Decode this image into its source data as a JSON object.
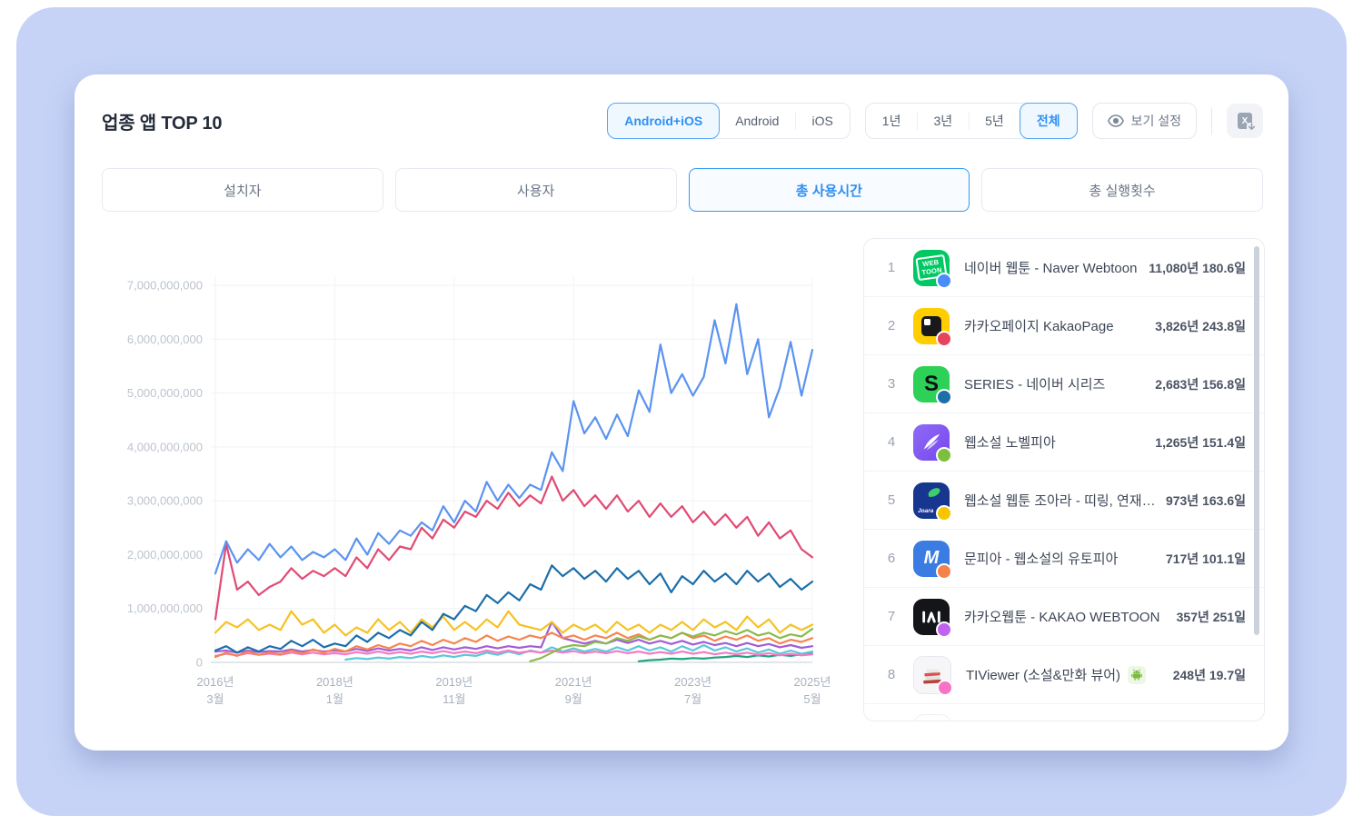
{
  "page": {
    "title": "업종 앱 TOP 10"
  },
  "header": {
    "platform_tabs": [
      {
        "label": "Android+iOS",
        "active": true
      },
      {
        "label": "Android",
        "active": false
      },
      {
        "label": "iOS",
        "active": false
      }
    ],
    "period_tabs": [
      {
        "label": "1년",
        "active": false
      },
      {
        "label": "3년",
        "active": false
      },
      {
        "label": "5년",
        "active": false
      },
      {
        "label": "전체",
        "active": true
      }
    ],
    "view_settings_label": "보기 설정",
    "accent_color": "#2e90f5"
  },
  "metric_tabs": [
    {
      "label": "설치자",
      "active": false
    },
    {
      "label": "사용자",
      "active": false
    },
    {
      "label": "총 사용시간",
      "active": true
    },
    {
      "label": "총 실행횟수",
      "active": false
    }
  ],
  "chart_data": {
    "type": "line",
    "unit_note": "total usage time, y values in billions (unit shown on axis as raw numbers)",
    "ylim": [
      0,
      7000000000
    ],
    "grid": true,
    "y_ticks": [
      "7,000,000,000",
      "6,000,000,000",
      "5,000,000,000",
      "4,000,000,000",
      "3,000,000,000",
      "2,000,000,000",
      "1,000,000,000",
      "0"
    ],
    "x_ticks": [
      {
        "line1": "2016년",
        "line2": "3월"
      },
      {
        "line1": "2018년",
        "line2": "1월"
      },
      {
        "line1": "2019년",
        "line2": "11월"
      },
      {
        "line1": "2021년",
        "line2": "9월"
      },
      {
        "line1": "2023년",
        "line2": "7월"
      },
      {
        "line1": "2025년",
        "line2": "5월"
      }
    ],
    "x_start": "2016-03",
    "x_step_months": 2,
    "series": [
      {
        "name": "네이버 웹툰 - Naver Webtoon",
        "color": "#5b93f0",
        "values": [
          1.65,
          2.25,
          1.85,
          2.1,
          1.9,
          2.2,
          1.95,
          2.15,
          1.9,
          2.05,
          1.95,
          2.1,
          1.9,
          2.3,
          2.0,
          2.4,
          2.2,
          2.45,
          2.35,
          2.6,
          2.45,
          2.9,
          2.6,
          3.0,
          2.8,
          3.35,
          3.0,
          3.3,
          3.05,
          3.3,
          3.2,
          3.9,
          3.55,
          4.85,
          4.25,
          4.55,
          4.15,
          4.6,
          4.2,
          5.05,
          4.65,
          5.9,
          5.0,
          5.35,
          4.95,
          5.3,
          6.35,
          5.55,
          6.65,
          5.35,
          6.0,
          4.55,
          5.1,
          5.95,
          4.95,
          5.8
        ]
      },
      {
        "name": "카카오페이지 KakaoPage",
        "color": "#e14a73",
        "values": [
          0.8,
          2.2,
          1.35,
          1.5,
          1.25,
          1.4,
          1.5,
          1.75,
          1.55,
          1.7,
          1.6,
          1.75,
          1.6,
          1.95,
          1.75,
          2.1,
          1.9,
          2.15,
          2.1,
          2.5,
          2.3,
          2.65,
          2.5,
          2.8,
          2.7,
          3.0,
          2.85,
          3.15,
          2.9,
          3.1,
          2.95,
          3.45,
          3.0,
          3.2,
          2.9,
          3.1,
          2.85,
          3.1,
          2.8,
          3.0,
          2.7,
          2.95,
          2.7,
          2.9,
          2.6,
          2.8,
          2.55,
          2.75,
          2.5,
          2.7,
          2.35,
          2.6,
          2.3,
          2.45,
          2.1,
          1.95
        ]
      },
      {
        "name": "SERIES - 네이버 시리즈",
        "color": "#1c6ea9",
        "values": [
          0.22,
          0.3,
          0.18,
          0.28,
          0.2,
          0.3,
          0.25,
          0.4,
          0.3,
          0.42,
          0.28,
          0.35,
          0.3,
          0.5,
          0.38,
          0.55,
          0.45,
          0.6,
          0.5,
          0.75,
          0.6,
          0.9,
          0.8,
          1.05,
          0.95,
          1.25,
          1.1,
          1.3,
          1.15,
          1.45,
          1.35,
          1.8,
          1.6,
          1.75,
          1.55,
          1.7,
          1.5,
          1.75,
          1.55,
          1.7,
          1.45,
          1.65,
          1.3,
          1.6,
          1.45,
          1.7,
          1.5,
          1.65,
          1.45,
          1.7,
          1.5,
          1.65,
          1.4,
          1.55,
          1.35,
          1.5
        ]
      },
      {
        "name": "웹소설 노벨피아",
        "color": "#8bba4c",
        "values": [
          null,
          null,
          null,
          null,
          null,
          null,
          null,
          null,
          null,
          null,
          null,
          null,
          null,
          null,
          null,
          null,
          null,
          null,
          null,
          null,
          null,
          null,
          null,
          null,
          null,
          null,
          null,
          null,
          null,
          0.02,
          0.08,
          0.18,
          0.28,
          0.32,
          0.3,
          0.38,
          0.35,
          0.45,
          0.4,
          0.48,
          0.42,
          0.5,
          0.45,
          0.55,
          0.48,
          0.55,
          0.5,
          0.58,
          0.52,
          0.6,
          0.5,
          0.55,
          0.45,
          0.52,
          0.48,
          0.62
        ]
      },
      {
        "name": "웹소설 웹툰 조아라 - 띠링, 연재가 ...",
        "color": "#f6c222",
        "values": [
          0.55,
          0.75,
          0.65,
          0.8,
          0.6,
          0.7,
          0.6,
          0.95,
          0.7,
          0.8,
          0.55,
          0.7,
          0.5,
          0.65,
          0.55,
          0.8,
          0.6,
          0.75,
          0.55,
          0.8,
          0.65,
          0.85,
          0.6,
          0.75,
          0.6,
          0.8,
          0.65,
          0.95,
          0.7,
          0.65,
          0.6,
          0.75,
          0.55,
          0.7,
          0.6,
          0.7,
          0.55,
          0.75,
          0.6,
          0.7,
          0.55,
          0.7,
          0.6,
          0.75,
          0.6,
          0.8,
          0.65,
          0.75,
          0.6,
          0.85,
          0.65,
          0.8,
          0.55,
          0.7,
          0.6,
          0.7
        ]
      },
      {
        "name": "문피아 - 웹소설의 유토피아",
        "color": "#f5854f",
        "values": [
          0.1,
          0.18,
          0.12,
          0.2,
          0.14,
          0.18,
          0.15,
          0.22,
          0.16,
          0.24,
          0.18,
          0.25,
          0.2,
          0.3,
          0.24,
          0.32,
          0.26,
          0.35,
          0.3,
          0.4,
          0.32,
          0.42,
          0.35,
          0.45,
          0.38,
          0.5,
          0.4,
          0.48,
          0.42,
          0.5,
          0.45,
          0.55,
          0.45,
          0.5,
          0.42,
          0.5,
          0.45,
          0.55,
          0.45,
          0.52,
          0.42,
          0.5,
          0.45,
          0.55,
          0.45,
          0.5,
          0.4,
          0.48,
          0.42,
          0.5,
          0.4,
          0.45,
          0.35,
          0.42,
          0.38,
          0.45
        ]
      },
      {
        "name": "카카오웹툰 - KAKAO WEBTOON",
        "color": "#a25cd6",
        "values": [
          0.2,
          0.22,
          0.18,
          0.22,
          0.19,
          0.21,
          0.2,
          0.24,
          0.2,
          0.23,
          0.2,
          0.22,
          0.2,
          0.25,
          0.21,
          0.26,
          0.22,
          0.25,
          0.22,
          0.28,
          0.23,
          0.28,
          0.24,
          0.28,
          0.25,
          0.3,
          0.26,
          0.3,
          0.27,
          0.3,
          0.28,
          0.75,
          0.45,
          0.4,
          0.35,
          0.4,
          0.35,
          0.42,
          0.36,
          0.42,
          0.35,
          0.4,
          0.34,
          0.4,
          0.33,
          0.38,
          0.32,
          0.36,
          0.3,
          0.36,
          0.3,
          0.34,
          0.28,
          0.32,
          0.27,
          0.3
        ]
      },
      {
        "name": "TIViewer (소설&만화 뷰어)",
        "color": "#f47bc3",
        "values": [
          0.12,
          0.16,
          0.13,
          0.17,
          0.14,
          0.16,
          0.14,
          0.18,
          0.15,
          0.18,
          0.15,
          0.17,
          0.15,
          0.19,
          0.16,
          0.2,
          0.16,
          0.19,
          0.16,
          0.2,
          0.17,
          0.21,
          0.17,
          0.2,
          0.17,
          0.22,
          0.18,
          0.22,
          0.18,
          0.21,
          0.18,
          0.22,
          0.18,
          0.21,
          0.17,
          0.2,
          0.17,
          0.21,
          0.17,
          0.2,
          0.16,
          0.19,
          0.16,
          0.2,
          0.16,
          0.19,
          0.15,
          0.18,
          0.15,
          0.18,
          0.14,
          0.17,
          0.13,
          0.16,
          0.13,
          0.15
        ]
      },
      {
        "name": "",
        "color": "#58c8d8",
        "values": [
          null,
          null,
          null,
          null,
          null,
          null,
          null,
          null,
          null,
          null,
          null,
          null,
          0.05,
          0.08,
          0.06,
          0.09,
          0.07,
          0.1,
          0.08,
          0.12,
          0.09,
          0.13,
          0.1,
          0.14,
          0.12,
          0.18,
          0.14,
          0.2,
          0.15,
          0.22,
          0.18,
          0.28,
          0.2,
          0.26,
          0.2,
          0.25,
          0.2,
          0.28,
          0.22,
          0.3,
          0.22,
          0.28,
          0.2,
          0.3,
          0.22,
          0.32,
          0.22,
          0.28,
          0.2,
          0.26,
          0.18,
          0.24,
          0.16,
          0.22,
          0.16,
          0.2
        ]
      },
      {
        "name": "",
        "color": "#1fa380",
        "values": [
          null,
          null,
          null,
          null,
          null,
          null,
          null,
          null,
          null,
          null,
          null,
          null,
          null,
          null,
          null,
          null,
          null,
          null,
          null,
          null,
          null,
          null,
          null,
          null,
          null,
          null,
          null,
          null,
          null,
          null,
          null,
          null,
          null,
          null,
          null,
          null,
          null,
          null,
          null,
          0.02,
          0.04,
          0.05,
          0.07,
          0.06,
          0.08,
          0.07,
          0.09,
          0.1,
          0.12,
          0.1,
          0.13,
          0.11,
          0.14,
          0.12,
          0.15,
          0.16
        ]
      }
    ]
  },
  "ranking": {
    "rows": [
      {
        "rank": "1",
        "name": "네이버 웹툰 - Naver Webtoon",
        "value": "11,080년 180.6일",
        "icon": "naver-webtoon-icon",
        "dot_color": "#4b8df8",
        "android_badge": false
      },
      {
        "rank": "2",
        "name": "카카오페이지 KakaoPage",
        "value": "3,826년 243.8일",
        "icon": "kakaopage-icon",
        "dot_color": "#e8435c",
        "android_badge": false
      },
      {
        "rank": "3",
        "name": "SERIES - 네이버 시리즈",
        "value": "2,683년 156.8일",
        "icon": "series-icon",
        "dot_color": "#1d6fa8",
        "android_badge": false
      },
      {
        "rank": "4",
        "name": "웹소설 노벨피아",
        "value": "1,265년 151.4일",
        "icon": "novelpia-icon",
        "dot_color": "#7cbf3f",
        "android_badge": false
      },
      {
        "rank": "5",
        "name": "웹소설 웹툰 조아라 - 띠링, 연재가 ...",
        "value": "973년 163.6일",
        "icon": "joara-icon",
        "dot_color": "#f7c600",
        "android_badge": false
      },
      {
        "rank": "6",
        "name": "문피아 - 웹소설의 유토피아",
        "value": "717년 101.1일",
        "icon": "munpia-icon",
        "dot_color": "#f5824a",
        "android_badge": false
      },
      {
        "rank": "7",
        "name": "카카오웹툰 - KAKAO WEBTOON",
        "value": "357년 251일",
        "icon": "kakao-webtoon-icon",
        "dot_color": "#c061f0",
        "android_badge": false
      },
      {
        "rank": "8",
        "name": "TIViewer (소설&만화 뷰어)",
        "value": "248년 19.7일",
        "icon": "tiviewer-icon",
        "dot_color": "#f873c5",
        "android_badge": true
      }
    ]
  }
}
